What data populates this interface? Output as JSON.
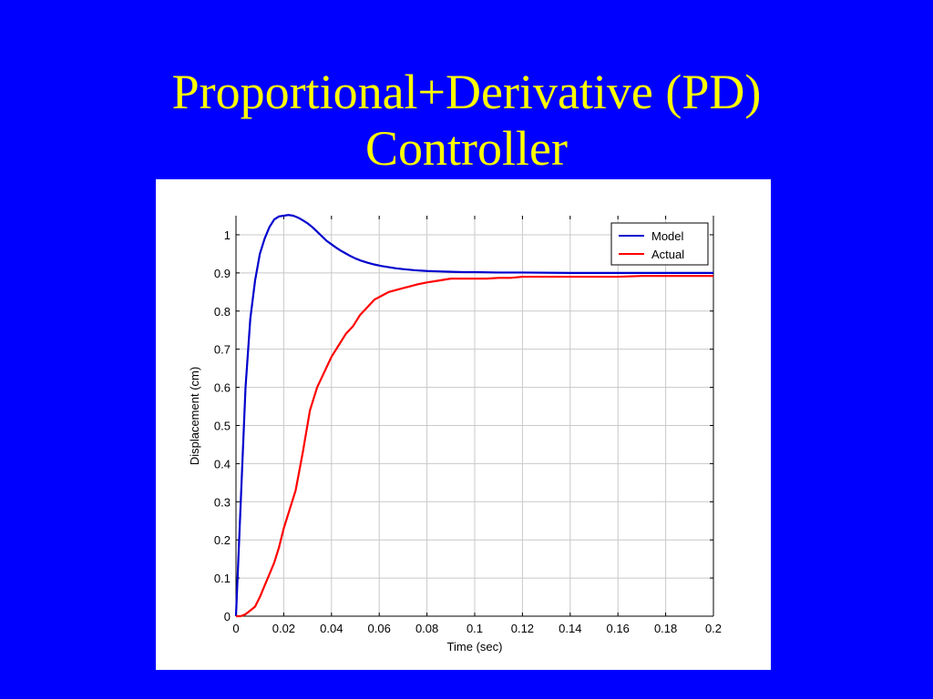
{
  "slide": {
    "background": "#0000ff",
    "title_color": "#ffff00",
    "title_line1": "Proportional+Derivative (PD)",
    "title_line2": "Controller"
  },
  "chart_data": {
    "type": "line",
    "title": "",
    "xlabel": "Time (sec)",
    "ylabel": "Displacement (cm)",
    "xlim": [
      0,
      0.2
    ],
    "ylim": [
      0,
      1.05
    ],
    "xticks": [
      0,
      0.02,
      0.04,
      0.06,
      0.08,
      0.1,
      0.12,
      0.14,
      0.16,
      0.18,
      0.2
    ],
    "xtick_labels": [
      "0",
      "0.02",
      "0.04",
      "0.06",
      "0.08",
      "0.1",
      "0.12",
      "0.14",
      "0.16",
      "0.18",
      "0.2"
    ],
    "yticks": [
      0,
      0.1,
      0.2,
      0.3,
      0.4,
      0.5,
      0.6,
      0.7,
      0.8,
      0.9,
      1
    ],
    "ytick_labels": [
      "0",
      "0.1",
      "0.2",
      "0.3",
      "0.4",
      "0.5",
      "0.6",
      "0.7",
      "0.8",
      "0.9",
      "1"
    ],
    "grid": true,
    "legend_position": "top-right",
    "series": [
      {
        "name": "Model",
        "color": "#0000cc",
        "x": [
          0,
          0.001,
          0.002,
          0.004,
          0.006,
          0.008,
          0.01,
          0.012,
          0.014,
          0.016,
          0.018,
          0.02,
          0.022,
          0.024,
          0.026,
          0.028,
          0.03,
          0.032,
          0.034,
          0.036,
          0.038,
          0.04,
          0.042,
          0.044,
          0.046,
          0.048,
          0.05,
          0.052,
          0.055,
          0.058,
          0.061,
          0.064,
          0.067,
          0.07,
          0.075,
          0.08,
          0.085,
          0.09,
          0.095,
          0.1,
          0.11,
          0.12,
          0.14,
          0.16,
          0.18,
          0.2
        ],
        "y": [
          0,
          0.15,
          0.3,
          0.6,
          0.78,
          0.88,
          0.95,
          0.99,
          1.02,
          1.04,
          1.048,
          1.05,
          1.052,
          1.05,
          1.045,
          1.038,
          1.03,
          1.02,
          1.008,
          0.996,
          0.984,
          0.975,
          0.966,
          0.958,
          0.951,
          0.944,
          0.938,
          0.933,
          0.927,
          0.922,
          0.918,
          0.915,
          0.912,
          0.91,
          0.907,
          0.905,
          0.904,
          0.903,
          0.902,
          0.902,
          0.901,
          0.901,
          0.9,
          0.9,
          0.9,
          0.9
        ]
      },
      {
        "name": "Actual",
        "color": "#ff0000",
        "x": [
          0,
          0.002,
          0.004,
          0.006,
          0.008,
          0.01,
          0.012,
          0.014,
          0.016,
          0.018,
          0.02,
          0.022,
          0.025,
          0.028,
          0.031,
          0.034,
          0.037,
          0.04,
          0.043,
          0.046,
          0.049,
          0.052,
          0.055,
          0.058,
          0.061,
          0.064,
          0.067,
          0.07,
          0.073,
          0.076,
          0.08,
          0.085,
          0.09,
          0.095,
          0.1,
          0.105,
          0.11,
          0.115,
          0.12,
          0.13,
          0.14,
          0.15,
          0.16,
          0.17,
          0.18,
          0.19,
          0.2
        ],
        "y": [
          0,
          0,
          0.005,
          0.015,
          0.025,
          0.05,
          0.08,
          0.11,
          0.14,
          0.18,
          0.23,
          0.27,
          0.33,
          0.43,
          0.54,
          0.6,
          0.64,
          0.68,
          0.71,
          0.74,
          0.76,
          0.79,
          0.81,
          0.83,
          0.84,
          0.85,
          0.855,
          0.86,
          0.865,
          0.87,
          0.875,
          0.88,
          0.885,
          0.885,
          0.885,
          0.885,
          0.887,
          0.887,
          0.89,
          0.89,
          0.89,
          0.89,
          0.89,
          0.892,
          0.892,
          0.892,
          0.892
        ]
      }
    ]
  }
}
